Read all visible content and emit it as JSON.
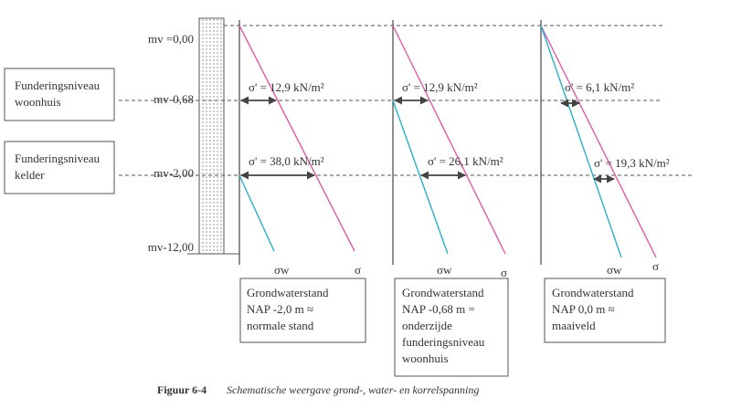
{
  "levels": [
    "mv =0,00",
    "mv-0,68",
    "mv-2,00",
    "mv-12,00"
  ],
  "foundation_boxes": [
    {
      "lines": [
        "Funderingsniveau",
        "woonhuis"
      ]
    },
    {
      "lines": [
        "Funderingsniveau",
        "kelder"
      ]
    }
  ],
  "diagrams": [
    {
      "stress_labels": [
        "σ' = 12,9 kN/m²",
        "σ' = 38,0 kN/m²"
      ],
      "sigma_w": "σw",
      "sigma": "σ",
      "box": [
        "Grondwaterstand",
        "NAP -2,0 m ≈",
        "normale stand"
      ]
    },
    {
      "stress_labels": [
        "σ' = 12,9 kN/m²",
        "σ' = 26,1 kN/m²"
      ],
      "sigma_w": "σw",
      "sigma": "σ",
      "box": [
        "Grondwaterstand",
        "NAP -0,68 m =",
        "onderzijde",
        "funderingsniveau",
        "woonhuis"
      ]
    },
    {
      "stress_labels": [
        "σ' = 6,1 kN/m²",
        "σ' = 19,3 kN/m²"
      ],
      "sigma_w": "σw",
      "sigma": "σ",
      "box": [
        "Grondwaterstand",
        "NAP 0,0 m ≈",
        "maaiveld"
      ]
    }
  ],
  "caption": {
    "label": "Figuur 6-4",
    "text": "Schematische weergave grond-, water- en korrelspanning"
  }
}
